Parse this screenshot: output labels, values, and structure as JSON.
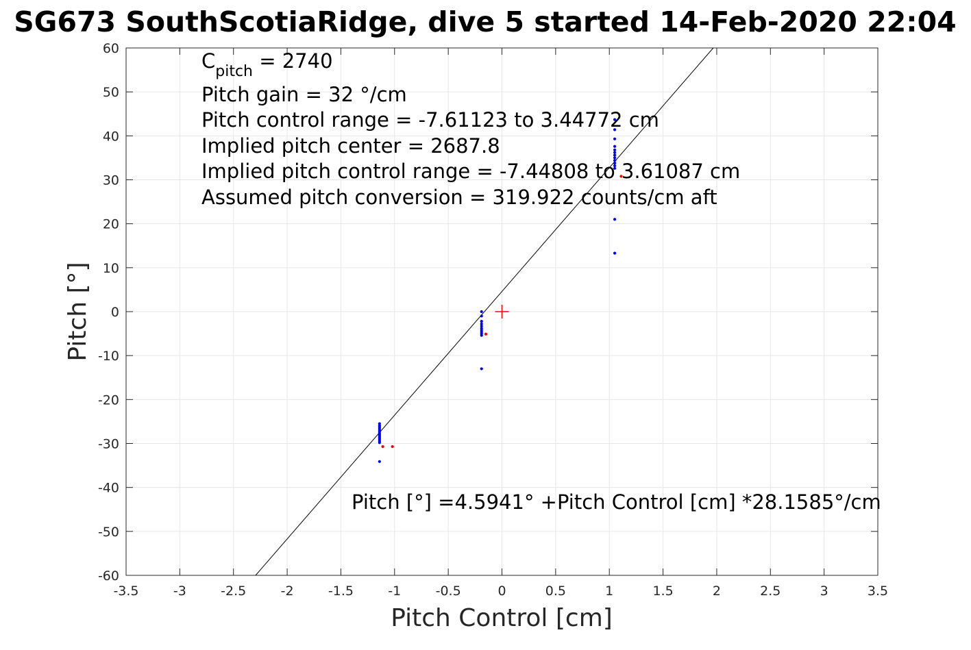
{
  "chart_data": {
    "type": "scatter",
    "title": "SG673 SouthScotiaRidge, dive 5 started 14-Feb-2020 22:04",
    "xlabel": "Pitch Control [cm]",
    "ylabel": "Pitch [°]",
    "xlim": [
      -3.5,
      3.5
    ],
    "ylim": [
      -60,
      60
    ],
    "xticks": [
      -3.5,
      -3,
      -2.5,
      -2,
      -1.5,
      -1,
      -0.5,
      0,
      0.5,
      1,
      1.5,
      2,
      2.5,
      3,
      3.5
    ],
    "xtick_labels": [
      "-3.5",
      "-3",
      "-2.5",
      "-2",
      "-1.5",
      "-1",
      "-0.5",
      "0",
      "0.5",
      "1",
      "1.5",
      "2",
      "2.5",
      "3",
      "3.5"
    ],
    "yticks": [
      -60,
      -50,
      -40,
      -30,
      -20,
      -10,
      0,
      10,
      20,
      30,
      40,
      50,
      60
    ],
    "ytick_labels": [
      "-60",
      "-50",
      "-40",
      "-30",
      "-20",
      "-10",
      "0",
      "10",
      "20",
      "30",
      "40",
      "50",
      "60"
    ],
    "grid": true,
    "colors": {
      "good": "#0000ff",
      "bad": "#ff0000",
      "fit": "#000000",
      "center_marker": "#ff0000",
      "grid": "#e6e6e6",
      "axes": "#262626"
    },
    "annotations": {
      "cpitch_label": "C",
      "cpitch_sub": "pitch",
      "cpitch_value": " = 2740",
      "lines": [
        "Pitch gain = 32 °/cm",
        "Pitch control range = -7.61123 to 3.44772 cm",
        "Implied pitch center = 2687.8",
        "Implied pitch control range = -7.44808 to 3.61087 cm",
        "Assumed pitch conversion = 319.922 counts/cm aft"
      ],
      "fit_text": "Pitch [°] =4.5941° +Pitch Control [cm] *28.1585°/cm"
    },
    "fit": {
      "intercept": 4.5941,
      "slope": 28.1585
    },
    "center_marker": {
      "x": 0,
      "y": 0
    },
    "series": [
      {
        "kind": "good",
        "points": [
          [
            -1.14,
            -25.5
          ],
          [
            -1.14,
            -25.9
          ],
          [
            -1.14,
            -26.2
          ],
          [
            -1.14,
            -26.5
          ],
          [
            -1.14,
            -26.8
          ],
          [
            -1.14,
            -27.1
          ],
          [
            -1.14,
            -27.4
          ],
          [
            -1.14,
            -27.7
          ],
          [
            -1.14,
            -28.0
          ],
          [
            -1.14,
            -28.3
          ],
          [
            -1.14,
            -28.6
          ],
          [
            -1.14,
            -28.9
          ],
          [
            -1.14,
            -29.2
          ],
          [
            -1.14,
            -29.5
          ],
          [
            -1.14,
            -29.8
          ],
          [
            -1.14,
            -34.1
          ],
          [
            -0.19,
            0.0
          ],
          [
            -0.19,
            -1.0
          ],
          [
            -0.19,
            -2.2
          ],
          [
            -0.19,
            -2.8
          ],
          [
            -0.19,
            -3.3
          ],
          [
            -0.19,
            -3.8
          ],
          [
            -0.19,
            -4.2
          ],
          [
            -0.19,
            -4.6
          ],
          [
            -0.19,
            -5.0
          ],
          [
            -0.19,
            -5.4
          ],
          [
            -0.19,
            -13.0
          ],
          [
            1.05,
            43.7
          ],
          [
            1.05,
            41.4
          ],
          [
            1.05,
            39.3
          ],
          [
            1.05,
            37.6
          ],
          [
            1.05,
            36.8
          ],
          [
            1.05,
            36.2
          ],
          [
            1.05,
            35.6
          ],
          [
            1.05,
            35.0
          ],
          [
            1.05,
            34.4
          ],
          [
            1.05,
            33.8
          ],
          [
            1.05,
            33.2
          ],
          [
            1.05,
            32.6
          ],
          [
            1.05,
            21.0
          ],
          [
            1.05,
            13.3
          ]
        ]
      },
      {
        "kind": "bad",
        "points": [
          [
            -1.11,
            -30.7
          ],
          [
            -1.02,
            -30.7
          ],
          [
            -0.15,
            -5.1
          ],
          [
            1.11,
            30.8
          ]
        ]
      }
    ]
  }
}
